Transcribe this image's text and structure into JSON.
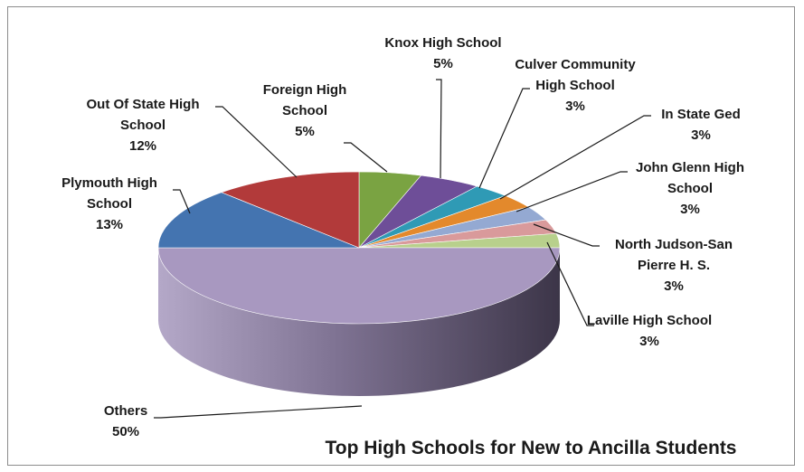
{
  "chart_data": {
    "type": "pie",
    "title": "Top High Schools for New to Ancilla Students",
    "style": "3d",
    "slices": [
      {
        "name": "Foreign High School",
        "value": 5,
        "label": "5%",
        "color": "#7aa342"
      },
      {
        "name": "Knox High School",
        "value": 5,
        "label": "5%",
        "color": "#6e4e98"
      },
      {
        "name": "Culver Community High School",
        "value": 3,
        "label": "3%",
        "color": "#2f9ab5"
      },
      {
        "name": "In State Ged",
        "value": 3,
        "label": "3%",
        "color": "#e3892c"
      },
      {
        "name": "John Glenn High School",
        "value": 3,
        "label": "3%",
        "color": "#94a9d2"
      },
      {
        "name": "North Judson-San Pierre H. S.",
        "value": 3,
        "label": "3%",
        "color": "#d99a9b"
      },
      {
        "name": "Laville High School",
        "value": 3,
        "label": "3%",
        "color": "#b8d08c"
      },
      {
        "name": "Others",
        "value": 50,
        "label": "50%",
        "color": "#a898c0"
      },
      {
        "name": "Plymouth High School",
        "value": 13,
        "label": "13%",
        "color": "#4474b0"
      },
      {
        "name": "Out Of State High School",
        "value": 12,
        "label": "12%",
        "color": "#b23a3a"
      }
    ],
    "labels": [
      {
        "lines": [
          "Foreign High",
          "School"
        ],
        "pct": "5%"
      },
      {
        "lines": [
          "Knox High School"
        ],
        "pct": "5%"
      },
      {
        "lines": [
          "Culver Community",
          "High School"
        ],
        "pct": "3%"
      },
      {
        "lines": [
          "In State Ged"
        ],
        "pct": "3%"
      },
      {
        "lines": [
          "John Glenn High",
          "School"
        ],
        "pct": "3%"
      },
      {
        "lines": [
          "North Judson-San",
          "Pierre H. S."
        ],
        "pct": "3%"
      },
      {
        "lines": [
          "Laville High School"
        ],
        "pct": "3%"
      },
      {
        "lines": [
          "Others"
        ],
        "pct": "50%"
      },
      {
        "lines": [
          "Plymouth High",
          "School"
        ],
        "pct": "13%"
      },
      {
        "lines": [
          "Out Of State High",
          "School"
        ],
        "pct": "12%"
      }
    ]
  }
}
